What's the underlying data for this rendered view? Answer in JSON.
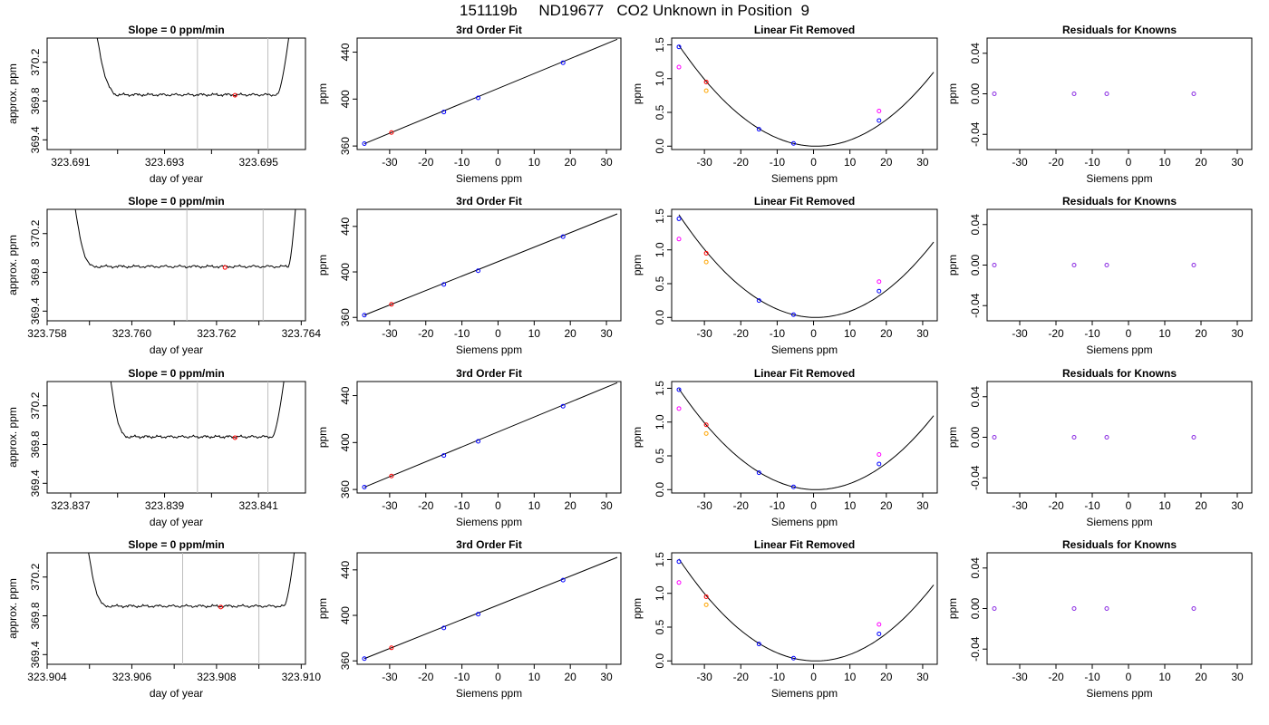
{
  "page_title": "151119b     ND19677   CO2 Unknown in Position  9",
  "colors": {
    "trace": "#000000",
    "interval_line": "#bebebe",
    "known_point": "#0000ff",
    "unknown_point": "#ff0000",
    "fit_point_orange": "#ffa500",
    "fit_point_magenta": "#ff00ff",
    "residual_point": "#8a2be2"
  },
  "chart_data": [
    {
      "type": "line",
      "title": "Slope =  0  ppm/min",
      "xlabel": "day of year",
      "ylabel": "approx. ppm",
      "xlim": [
        323.6905,
        323.696
      ],
      "ylim": [
        369.3,
        370.45
      ],
      "x_ticks": [
        "323.691",
        "323.693",
        "323.695"
      ],
      "x_tick_values": [
        323.691,
        323.693,
        323.695
      ],
      "y_ticks": [
        "369.4",
        "369.8",
        "370.2"
      ],
      "y_tick_values": [
        369.4,
        369.8,
        370.2
      ],
      "trace": {
        "x_start": 323.6915,
        "x_end": 323.6957,
        "baseline": 369.865,
        "rise_start": 323.692,
        "fall_end": 323.6954
      },
      "interval_lines": [
        323.6937,
        323.6952
      ],
      "unknown_point": {
        "x": 323.6945,
        "y": 369.86
      }
    },
    {
      "type": "scatter",
      "title": "3rd Order Fit",
      "xlabel": "Siemens ppm",
      "ylabel": "ppm",
      "xlim": [
        -39,
        34
      ],
      "ylim": [
        357,
        452
      ],
      "x_ticks": [
        "-30",
        "-20",
        "-10",
        "0",
        "10",
        "20",
        "30"
      ],
      "x_tick_values": [
        -30,
        -20,
        -10,
        0,
        10,
        20,
        30
      ],
      "y_ticks": [
        "360",
        "400",
        "440"
      ],
      "y_tick_values": [
        360,
        400,
        440
      ],
      "fit_line": [
        [
          -37,
          362
        ],
        [
          33,
          451
        ]
      ],
      "points": [
        {
          "x": -37,
          "y": 362,
          "color": "known"
        },
        {
          "x": -29.5,
          "y": 371.5,
          "color": "unknown"
        },
        {
          "x": -15,
          "y": 389,
          "color": "known"
        },
        {
          "x": -5.5,
          "y": 401,
          "color": "known"
        },
        {
          "x": 18,
          "y": 431,
          "color": "known"
        }
      ]
    },
    {
      "type": "scatter",
      "title": "Linear Fit Removed",
      "xlabel": "Siemens ppm",
      "ylabel": "ppm",
      "xlim": [
        -39,
        34
      ],
      "ylim": [
        -0.05,
        1.6
      ],
      "x_ticks": [
        "-30",
        "-20",
        "-10",
        "0",
        "10",
        "20",
        "30"
      ],
      "x_tick_values": [
        -30,
        -20,
        -10,
        0,
        10,
        20,
        30
      ],
      "y_ticks": [
        "0.0",
        "0.5",
        "1.0",
        "1.5"
      ],
      "y_tick_values": [
        0,
        0.5,
        1.0,
        1.5
      ],
      "curve": {
        "a": 0.00105,
        "b": -0.0015,
        "x_from": -37,
        "x_to": 33
      },
      "points": [
        {
          "x": -37,
          "y": 1.47,
          "color": "known"
        },
        {
          "x": -37,
          "y": 1.17,
          "color": "magenta"
        },
        {
          "x": -29.5,
          "y": 0.95,
          "color": "unknown"
        },
        {
          "x": -29.5,
          "y": 0.82,
          "color": "orange"
        },
        {
          "x": -15,
          "y": 0.25,
          "color": "known"
        },
        {
          "x": -5.5,
          "y": 0.04,
          "color": "known"
        },
        {
          "x": 18,
          "y": 0.38,
          "color": "known"
        },
        {
          "x": 18,
          "y": 0.52,
          "color": "magenta"
        }
      ]
    },
    {
      "type": "scatter",
      "title": "Residuals for Knowns",
      "xlabel": "Siemens ppm",
      "ylabel": "ppm",
      "xlim": [
        -39,
        34
      ],
      "ylim": [
        -0.055,
        0.055
      ],
      "x_ticks": [
        "-30",
        "-20",
        "-10",
        "0",
        "10",
        "20",
        "30"
      ],
      "x_tick_values": [
        -30,
        -20,
        -10,
        0,
        10,
        20,
        30
      ],
      "y_ticks": [
        "-0.04",
        "0.00",
        "0.04"
      ],
      "y_tick_values": [
        -0.04,
        0,
        0.04
      ],
      "points": [
        {
          "x": -37,
          "y": 0,
          "color": "residual"
        },
        {
          "x": -15,
          "y": 0,
          "color": "residual"
        },
        {
          "x": -6,
          "y": 0,
          "color": "residual"
        },
        {
          "x": 18,
          "y": 0,
          "color": "residual"
        }
      ]
    },
    {
      "type": "line",
      "title": "Slope =  0  ppm/min",
      "xlabel": "day of year",
      "ylabel": "approx. ppm",
      "xlim": [
        323.758,
        323.7641
      ],
      "ylim": [
        369.3,
        370.45
      ],
      "x_ticks": [
        "323.758",
        "323.760",
        "323.762",
        "323.764"
      ],
      "x_tick_values": [
        323.758,
        323.76,
        323.762,
        323.764
      ],
      "y_ticks": [
        "369.4",
        "369.8",
        "370.2"
      ],
      "y_tick_values": [
        369.4,
        369.8,
        370.2
      ],
      "trace": {
        "x_start": 323.7586,
        "x_end": 323.7639,
        "baseline": 369.86,
        "rise_start": 323.7591,
        "fall_end": 323.7637
      },
      "interval_lines": [
        323.7613,
        323.7631
      ],
      "unknown_point": {
        "x": 323.7622,
        "y": 369.85
      }
    },
    {
      "type": "scatter",
      "title": "3rd Order Fit",
      "xlabel": "Siemens ppm",
      "ylabel": "ppm",
      "xlim": [
        -39,
        34
      ],
      "ylim": [
        357,
        455
      ],
      "x_ticks": [
        "-30",
        "-20",
        "-10",
        "0",
        "10",
        "20",
        "30"
      ],
      "x_tick_values": [
        -30,
        -20,
        -10,
        0,
        10,
        20,
        30
      ],
      "y_ticks": [
        "360",
        "400",
        "440"
      ],
      "y_tick_values": [
        360,
        400,
        440
      ],
      "fit_line": [
        [
          -37,
          362
        ],
        [
          33,
          451
        ]
      ],
      "points": [
        {
          "x": -37,
          "y": 362,
          "color": "known"
        },
        {
          "x": -29.5,
          "y": 371.5,
          "color": "unknown"
        },
        {
          "x": -15,
          "y": 389,
          "color": "known"
        },
        {
          "x": -5.5,
          "y": 401,
          "color": "known"
        },
        {
          "x": 18,
          "y": 431,
          "color": "known"
        }
      ]
    },
    {
      "type": "scatter",
      "title": "Linear Fit Removed",
      "xlabel": "Siemens ppm",
      "ylabel": "ppm",
      "xlim": [
        -39,
        34
      ],
      "ylim": [
        -0.05,
        1.6
      ],
      "x_ticks": [
        "-30",
        "-20",
        "-10",
        "0",
        "10",
        "20",
        "30"
      ],
      "x_tick_values": [
        -30,
        -20,
        -10,
        0,
        10,
        20,
        30
      ],
      "y_ticks": [
        "0.0",
        "0.5",
        "1.0",
        "1.5"
      ],
      "y_tick_values": [
        0,
        0.5,
        1.0,
        1.5
      ],
      "curve": {
        "a": 0.00107,
        "b": -0.0015,
        "x_from": -37,
        "x_to": 33
      },
      "points": [
        {
          "x": -37,
          "y": 1.46,
          "color": "known"
        },
        {
          "x": -37,
          "y": 1.16,
          "color": "magenta"
        },
        {
          "x": -29.5,
          "y": 0.95,
          "color": "unknown"
        },
        {
          "x": -29.5,
          "y": 0.82,
          "color": "orange"
        },
        {
          "x": -15,
          "y": 0.25,
          "color": "known"
        },
        {
          "x": -5.5,
          "y": 0.04,
          "color": "known"
        },
        {
          "x": 18,
          "y": 0.39,
          "color": "known"
        },
        {
          "x": 18,
          "y": 0.53,
          "color": "magenta"
        }
      ]
    },
    {
      "type": "scatter",
      "title": "Residuals for Knowns",
      "xlabel": "Siemens ppm",
      "ylabel": "ppm",
      "xlim": [
        -39,
        34
      ],
      "ylim": [
        -0.055,
        0.055
      ],
      "x_ticks": [
        "-30",
        "-20",
        "-10",
        "0",
        "10",
        "20",
        "30"
      ],
      "x_tick_values": [
        -30,
        -20,
        -10,
        0,
        10,
        20,
        30
      ],
      "y_ticks": [
        "-0.04",
        "0.00",
        "0.04"
      ],
      "y_tick_values": [
        -0.04,
        0,
        0.04
      ],
      "points": [
        {
          "x": -37,
          "y": 0,
          "color": "residual"
        },
        {
          "x": -15,
          "y": 0,
          "color": "residual"
        },
        {
          "x": -6,
          "y": 0,
          "color": "residual"
        },
        {
          "x": 18,
          "y": 0,
          "color": "residual"
        }
      ]
    },
    {
      "type": "line",
      "title": "Slope =  0  ppm/min",
      "xlabel": "day of year",
      "ylabel": "approx. ppm",
      "xlim": [
        323.8365,
        323.842
      ],
      "ylim": [
        369.3,
        370.45
      ],
      "x_ticks": [
        "323.837",
        "323.839",
        "323.841"
      ],
      "x_tick_values": [
        323.837,
        323.839,
        323.841
      ],
      "y_ticks": [
        "369.4",
        "369.8",
        "370.2"
      ],
      "y_tick_values": [
        369.4,
        369.8,
        370.2
      ],
      "trace": {
        "x_start": 323.8378,
        "x_end": 323.8416,
        "baseline": 369.88,
        "rise_start": 323.8382,
        "fall_end": 323.8413
      },
      "interval_lines": [
        323.8397,
        323.8412
      ],
      "unknown_point": {
        "x": 323.8405,
        "y": 369.87
      }
    },
    {
      "type": "scatter",
      "title": "3rd Order Fit",
      "xlabel": "Siemens ppm",
      "ylabel": "ppm",
      "xlim": [
        -39,
        34
      ],
      "ylim": [
        357,
        452
      ],
      "x_ticks": [
        "-30",
        "-20",
        "-10",
        "0",
        "10",
        "20",
        "30"
      ],
      "x_tick_values": [
        -30,
        -20,
        -10,
        0,
        10,
        20,
        30
      ],
      "y_ticks": [
        "360",
        "400",
        "440"
      ],
      "y_tick_values": [
        360,
        400,
        440
      ],
      "fit_line": [
        [
          -37,
          362
        ],
        [
          33,
          451
        ]
      ],
      "points": [
        {
          "x": -37,
          "y": 362,
          "color": "known"
        },
        {
          "x": -29.5,
          "y": 371.5,
          "color": "unknown"
        },
        {
          "x": -15,
          "y": 389,
          "color": "known"
        },
        {
          "x": -5.5,
          "y": 401,
          "color": "known"
        },
        {
          "x": 18,
          "y": 431,
          "color": "known"
        }
      ]
    },
    {
      "type": "scatter",
      "title": "Linear Fit Removed",
      "xlabel": "Siemens ppm",
      "ylabel": "ppm",
      "xlim": [
        -39,
        34
      ],
      "ylim": [
        -0.05,
        1.6
      ],
      "x_ticks": [
        "-30",
        "-20",
        "-10",
        "0",
        "10",
        "20",
        "30"
      ],
      "x_tick_values": [
        -30,
        -20,
        -10,
        0,
        10,
        20,
        30
      ],
      "y_ticks": [
        "0.0",
        "0.5",
        "1.0",
        "1.5"
      ],
      "y_tick_values": [
        0,
        0.5,
        1.0,
        1.5
      ],
      "curve": {
        "a": 0.00105,
        "b": -0.0015,
        "x_from": -37,
        "x_to": 33
      },
      "points": [
        {
          "x": -37,
          "y": 1.48,
          "color": "known"
        },
        {
          "x": -37,
          "y": 1.2,
          "color": "magenta"
        },
        {
          "x": -29.5,
          "y": 0.96,
          "color": "unknown"
        },
        {
          "x": -29.5,
          "y": 0.83,
          "color": "orange"
        },
        {
          "x": -15,
          "y": 0.25,
          "color": "known"
        },
        {
          "x": -5.5,
          "y": 0.04,
          "color": "known"
        },
        {
          "x": 18,
          "y": 0.38,
          "color": "known"
        },
        {
          "x": 18,
          "y": 0.52,
          "color": "magenta"
        }
      ]
    },
    {
      "type": "scatter",
      "title": "Residuals for Knowns",
      "xlabel": "Siemens ppm",
      "ylabel": "ppm",
      "xlim": [
        -39,
        34
      ],
      "ylim": [
        -0.055,
        0.055
      ],
      "x_ticks": [
        "-30",
        "-20",
        "-10",
        "0",
        "10",
        "20",
        "30"
      ],
      "x_tick_values": [
        -30,
        -20,
        -10,
        0,
        10,
        20,
        30
      ],
      "y_ticks": [
        "-0.04",
        "0.00",
        "0.04"
      ],
      "y_tick_values": [
        -0.04,
        0,
        0.04
      ],
      "points": [
        {
          "x": -37,
          "y": 0,
          "color": "residual"
        },
        {
          "x": -15,
          "y": 0,
          "color": "residual"
        },
        {
          "x": -6,
          "y": 0,
          "color": "residual"
        },
        {
          "x": 18,
          "y": 0,
          "color": "residual"
        }
      ]
    },
    {
      "type": "line",
      "title": "Slope =  0  ppm/min",
      "xlabel": "day of year",
      "ylabel": "approx. ppm",
      "xlim": [
        323.904,
        323.9101
      ],
      "ylim": [
        369.3,
        370.45
      ],
      "x_ticks": [
        "323.904",
        "323.906",
        "323.908",
        "323.910"
      ],
      "x_tick_values": [
        323.904,
        323.906,
        323.908,
        323.91
      ],
      "y_ticks": [
        "369.4",
        "369.8",
        "370.2"
      ],
      "y_tick_values": [
        369.4,
        369.8,
        370.2
      ],
      "trace": {
        "x_start": 323.9049,
        "x_end": 323.9099,
        "baseline": 369.9,
        "rise_start": 323.9054,
        "fall_end": 323.9096
      },
      "interval_lines": [
        323.9072,
        323.909
      ],
      "unknown_point": {
        "x": 323.9081,
        "y": 369.89
      }
    },
    {
      "type": "scatter",
      "title": "3rd Order Fit",
      "xlabel": "Siemens ppm",
      "ylabel": "ppm",
      "xlim": [
        -39,
        34
      ],
      "ylim": [
        357,
        455
      ],
      "x_ticks": [
        "-30",
        "-20",
        "-10",
        "0",
        "10",
        "20",
        "30"
      ],
      "x_tick_values": [
        -30,
        -20,
        -10,
        0,
        10,
        20,
        30
      ],
      "y_ticks": [
        "360",
        "400",
        "440"
      ],
      "y_tick_values": [
        360,
        400,
        440
      ],
      "fit_line": [
        [
          -37,
          362
        ],
        [
          33,
          451
        ]
      ],
      "points": [
        {
          "x": -37,
          "y": 362,
          "color": "known"
        },
        {
          "x": -29.5,
          "y": 371.5,
          "color": "unknown"
        },
        {
          "x": -15,
          "y": 389,
          "color": "known"
        },
        {
          "x": -5.5,
          "y": 401,
          "color": "known"
        },
        {
          "x": 18,
          "y": 431,
          "color": "known"
        }
      ]
    },
    {
      "type": "scatter",
      "title": "Linear Fit Removed",
      "xlabel": "Siemens ppm",
      "ylabel": "ppm",
      "xlim": [
        -39,
        34
      ],
      "ylim": [
        -0.05,
        1.6
      ],
      "x_ticks": [
        "-30",
        "-20",
        "-10",
        "0",
        "10",
        "20",
        "30"
      ],
      "x_tick_values": [
        -30,
        -20,
        -10,
        0,
        10,
        20,
        30
      ],
      "y_ticks": [
        "0.0",
        "0.5",
        "1.0",
        "1.5"
      ],
      "y_tick_values": [
        0,
        0.5,
        1.0,
        1.5
      ],
      "curve": {
        "a": 0.00107,
        "b": -0.0012,
        "x_from": -37,
        "x_to": 33
      },
      "points": [
        {
          "x": -37,
          "y": 1.47,
          "color": "known"
        },
        {
          "x": -37,
          "y": 1.16,
          "color": "magenta"
        },
        {
          "x": -29.5,
          "y": 0.95,
          "color": "unknown"
        },
        {
          "x": -29.5,
          "y": 0.83,
          "color": "orange"
        },
        {
          "x": -15,
          "y": 0.25,
          "color": "known"
        },
        {
          "x": -5.5,
          "y": 0.04,
          "color": "known"
        },
        {
          "x": 18,
          "y": 0.4,
          "color": "known"
        },
        {
          "x": 18,
          "y": 0.54,
          "color": "magenta"
        }
      ]
    },
    {
      "type": "scatter",
      "title": "Residuals for Knowns",
      "xlabel": "Siemens ppm",
      "ylabel": "ppm",
      "xlim": [
        -39,
        34
      ],
      "ylim": [
        -0.055,
        0.055
      ],
      "x_ticks": [
        "-30",
        "-20",
        "-10",
        "0",
        "10",
        "20",
        "30"
      ],
      "x_tick_values": [
        -30,
        -20,
        -10,
        0,
        10,
        20,
        30
      ],
      "y_ticks": [
        "-0.04",
        "0.00",
        "0.04"
      ],
      "y_tick_values": [
        -0.04,
        0,
        0.04
      ],
      "points": [
        {
          "x": -37,
          "y": 0,
          "color": "residual"
        },
        {
          "x": -15,
          "y": 0,
          "color": "residual"
        },
        {
          "x": -6,
          "y": 0,
          "color": "residual"
        },
        {
          "x": 18,
          "y": 0,
          "color": "residual"
        }
      ]
    }
  ]
}
